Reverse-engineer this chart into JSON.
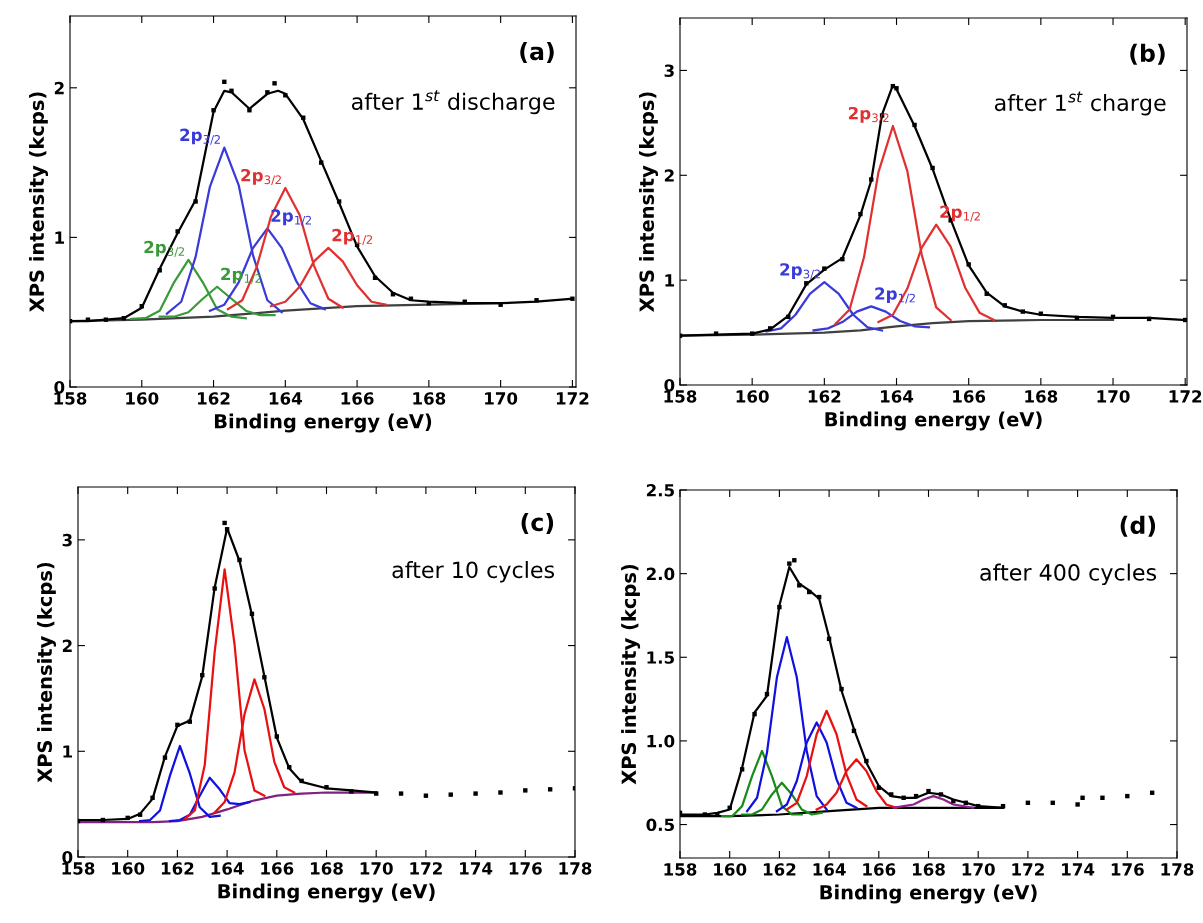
{
  "chart_data": [
    {
      "type": "line",
      "xlabel": "Binding energy (eV)",
      "ylabel": "XPS intensity (kcps)",
      "xlim": [
        158,
        172.1
      ],
      "ylim": [
        0,
        2.48
      ],
      "xticks": [
        158,
        160,
        162,
        164,
        166,
        168,
        170,
        172
      ],
      "yticks": [
        0,
        1,
        2
      ],
      "grid": false,
      "annotations": [
        "(a)",
        "after 1$^{st}$ discharge"
      ],
      "series": [
        {
          "color": "#404040",
          "x": [
            158,
            160,
            162,
            164,
            166,
            168,
            170
          ],
          "values": [
            0.44,
            0.45,
            0.47,
            0.51,
            0.54,
            0.55,
            0.56
          ]
        },
        {
          "name": "2p$_{3/2}$",
          "color": "#3a9a3a",
          "x": [
            159.7,
            160.1,
            160.5,
            160.9,
            161.3,
            161.7,
            162.1,
            162.5,
            162.9
          ],
          "values": [
            0.455,
            0.46,
            0.51,
            0.7,
            0.85,
            0.7,
            0.52,
            0.47,
            0.46
          ]
        },
        {
          "name": "2p$_{1/2}$",
          "color": "#3a9a3a",
          "x": [
            160.5,
            160.9,
            161.3,
            161.7,
            162.1,
            162.5,
            162.9,
            163.3,
            163.7
          ],
          "values": [
            0.47,
            0.47,
            0.5,
            0.59,
            0.67,
            0.59,
            0.51,
            0.48,
            0.48
          ]
        },
        {
          "name": "2p$_{3/2}$",
          "color": "#3a3ad8",
          "x": [
            160.7,
            161.1,
            161.5,
            161.9,
            162.3,
            162.7,
            163.1,
            163.5,
            163.9
          ],
          "values": [
            0.49,
            0.57,
            0.87,
            1.34,
            1.6,
            1.35,
            0.88,
            0.58,
            0.5
          ]
        },
        {
          "name": "2p$_{1/2}$",
          "color": "#3a3ad8",
          "x": [
            161.9,
            162.3,
            162.7,
            163.1,
            163.5,
            163.9,
            164.3,
            164.7,
            165.1
          ],
          "values": [
            0.51,
            0.55,
            0.7,
            0.93,
            1.06,
            0.93,
            0.71,
            0.56,
            0.52
          ]
        },
        {
          "name": "2p$_{3/2}$",
          "color": "#e03030",
          "x": [
            162.4,
            162.8,
            163.2,
            163.6,
            164.0,
            164.4,
            164.8,
            165.2,
            165.6
          ],
          "values": [
            0.52,
            0.58,
            0.8,
            1.14,
            1.33,
            1.15,
            0.81,
            0.59,
            0.53
          ]
        },
        {
          "name": "2p$_{1/2}$",
          "color": "#e03030",
          "x": [
            163.6,
            164.0,
            164.4,
            164.8,
            165.2,
            165.6,
            166.0,
            166.4,
            166.8
          ],
          "values": [
            0.54,
            0.57,
            0.67,
            0.84,
            0.93,
            0.84,
            0.68,
            0.57,
            0.55
          ]
        },
        {
          "color": "#000000",
          "x": [
            158,
            158.5,
            159,
            159.5,
            160,
            160.5,
            161,
            161.5,
            162,
            162.3,
            162.5,
            163,
            163.5,
            163.8,
            164,
            164.5,
            165,
            165.5,
            166,
            166.5,
            167,
            167.5,
            168,
            169,
            170,
            171,
            172
          ],
          "values": [
            0.44,
            0.44,
            0.45,
            0.46,
            0.53,
            0.79,
            1.03,
            1.25,
            1.84,
            1.98,
            1.97,
            1.86,
            1.96,
            1.98,
            1.96,
            1.79,
            1.51,
            1.23,
            0.94,
            0.74,
            0.63,
            0.58,
            0.57,
            0.56,
            0.56,
            0.57,
            0.59
          ]
        },
        {
          "type": "scatter",
          "marker": "square",
          "color": "#000000",
          "x": [
            158,
            158.5,
            159,
            159.5,
            160,
            160.5,
            161,
            161.5,
            162,
            162.3,
            162.5,
            163,
            163.5,
            163.7,
            164,
            164.5,
            165,
            165.5,
            166,
            166.5,
            167,
            167.5,
            168,
            169,
            170,
            171,
            172
          ],
          "values": [
            0.44,
            0.45,
            0.45,
            0.46,
            0.54,
            0.78,
            1.04,
            1.24,
            1.85,
            2.04,
            1.98,
            1.85,
            1.97,
            2.03,
            1.95,
            1.8,
            1.5,
            1.24,
            0.95,
            0.73,
            0.62,
            0.59,
            0.56,
            0.57,
            0.55,
            0.58,
            0.59
          ]
        }
      ]
    },
    {
      "type": "line",
      "xlabel": "Binding energy (eV)",
      "ylabel": "XPS intensity (kcps)",
      "xlim": [
        158,
        172.05
      ],
      "ylim": [
        0,
        3.5
      ],
      "xticks": [
        158,
        160,
        162,
        164,
        166,
        168,
        170,
        172
      ],
      "yticks": [
        0,
        1,
        2,
        3
      ],
      "grid": false,
      "annotations": [
        "(b)",
        "after 1$^{st}$ charge"
      ],
      "series": [
        {
          "color": "#404040",
          "x": [
            158,
            160,
            162,
            163,
            164,
            165,
            166,
            168,
            170
          ],
          "values": [
            0.47,
            0.48,
            0.5,
            0.52,
            0.56,
            0.59,
            0.61,
            0.62,
            0.62
          ]
        },
        {
          "name": "2p$_{3/2}$",
          "color": "#3a3ad8",
          "x": [
            160.4,
            160.8,
            161.2,
            161.6,
            162.0,
            162.4,
            162.8,
            163.2,
            163.6
          ],
          "values": [
            0.51,
            0.54,
            0.67,
            0.87,
            0.98,
            0.87,
            0.67,
            0.55,
            0.52
          ]
        },
        {
          "name": "2p$_{1/2}$",
          "color": "#3a3ad8",
          "x": [
            161.7,
            162.1,
            162.5,
            162.9,
            163.3,
            163.7,
            164.1,
            164.5,
            164.9
          ],
          "values": [
            0.52,
            0.54,
            0.6,
            0.7,
            0.75,
            0.7,
            0.61,
            0.56,
            0.55
          ]
        },
        {
          "name": "2p$_{3/2}$",
          "color": "#e03030",
          "x": [
            162.3,
            162.7,
            163.1,
            163.5,
            163.9,
            164.3,
            164.7,
            165.1,
            165.5
          ],
          "values": [
            0.58,
            0.72,
            1.22,
            2.03,
            2.47,
            2.04,
            1.24,
            0.74,
            0.62
          ]
        },
        {
          "name": "2p$_{1/2}$",
          "color": "#e03030",
          "x": [
            163.5,
            163.9,
            164.3,
            164.7,
            165.1,
            165.5,
            165.9,
            166.3,
            166.7
          ],
          "values": [
            0.6,
            0.67,
            0.92,
            1.31,
            1.53,
            1.32,
            0.93,
            0.69,
            0.62
          ]
        },
        {
          "color": "#000000",
          "x": [
            158,
            159,
            160,
            160.5,
            161,
            161.5,
            162,
            162.5,
            163,
            163.3,
            163.6,
            163.9,
            164,
            164.5,
            165,
            165.5,
            166,
            166.5,
            167,
            167.5,
            168,
            169,
            170,
            171,
            172
          ],
          "values": [
            0.47,
            0.48,
            0.49,
            0.53,
            0.66,
            0.96,
            1.1,
            1.21,
            1.62,
            1.95,
            2.58,
            2.86,
            2.82,
            2.47,
            2.06,
            1.58,
            1.14,
            0.88,
            0.75,
            0.7,
            0.67,
            0.65,
            0.64,
            0.64,
            0.62
          ]
        },
        {
          "type": "scatter",
          "marker": "square",
          "color": "#000000",
          "x": [
            158,
            159,
            160,
            160.5,
            161,
            161.5,
            162,
            162.5,
            163,
            163.3,
            163.6,
            163.9,
            164,
            164.5,
            165,
            165.5,
            166,
            166.5,
            167,
            167.5,
            168,
            169,
            170,
            171,
            172
          ],
          "values": [
            0.47,
            0.49,
            0.49,
            0.54,
            0.65,
            0.97,
            1.11,
            1.2,
            1.63,
            1.96,
            2.57,
            2.85,
            2.83,
            2.48,
            2.07,
            1.57,
            1.15,
            0.87,
            0.76,
            0.7,
            0.68,
            0.64,
            0.65,
            0.63,
            0.62
          ]
        }
      ]
    },
    {
      "type": "line",
      "xlabel": "Binding energy (eV)",
      "ylabel": "XPS intensity (kcps)",
      "xlim": [
        158,
        178
      ],
      "ylim": [
        0,
        3.5
      ],
      "xticks": [
        158,
        160,
        162,
        164,
        166,
        168,
        170,
        172,
        174,
        176,
        178
      ],
      "yticks": [
        0,
        1,
        2,
        3
      ],
      "grid": false,
      "annotations": [
        "(c)",
        "after 10 cycles"
      ],
      "series": [
        {
          "color": "#802080",
          "x": [
            158,
            161,
            162,
            163,
            164,
            165,
            166,
            167,
            168,
            170
          ],
          "values": [
            0.33,
            0.33,
            0.34,
            0.38,
            0.45,
            0.53,
            0.58,
            0.6,
            0.61,
            0.61
          ]
        },
        {
          "color": "#1010e0",
          "x": [
            160.5,
            160.9,
            161.3,
            161.7,
            162.1,
            162.5,
            162.9,
            163.3,
            163.7
          ],
          "values": [
            0.34,
            0.35,
            0.44,
            0.77,
            1.05,
            0.79,
            0.47,
            0.38,
            0.39
          ]
        },
        {
          "color": "#1010e0",
          "x": [
            161.7,
            162.1,
            162.5,
            162.9,
            163.3,
            163.7,
            164.1,
            164.5,
            164.9
          ],
          "values": [
            0.34,
            0.35,
            0.4,
            0.58,
            0.75,
            0.64,
            0.51,
            0.5,
            0.52
          ]
        },
        {
          "color": "#e81010",
          "x": [
            162.3,
            162.7,
            163.1,
            163.5,
            163.9,
            164.3,
            164.7,
            165.1,
            165.5
          ],
          "values": [
            0.36,
            0.44,
            0.87,
            1.94,
            2.72,
            2.01,
            1.01,
            0.63,
            0.58
          ]
        },
        {
          "color": "#e81010",
          "x": [
            163.5,
            163.9,
            164.3,
            164.7,
            165.1,
            165.5,
            165.9,
            166.3,
            166.7
          ],
          "values": [
            0.42,
            0.52,
            0.8,
            1.35,
            1.68,
            1.4,
            0.9,
            0.66,
            0.61
          ]
        },
        {
          "color": "#000000",
          "x": [
            158,
            159,
            160,
            160.5,
            161,
            161.5,
            162,
            162.5,
            163,
            163.5,
            164,
            164.5,
            165,
            165.5,
            166,
            166.5,
            167,
            168,
            169,
            170
          ],
          "values": [
            0.35,
            0.35,
            0.36,
            0.41,
            0.55,
            0.95,
            1.24,
            1.29,
            1.71,
            2.55,
            3.11,
            2.8,
            2.29,
            1.71,
            1.13,
            0.84,
            0.71,
            0.65,
            0.63,
            0.61
          ]
        },
        {
          "type": "scatter",
          "marker": "square",
          "color": "#000000",
          "x": [
            158,
            159,
            160,
            160.5,
            161,
            161.5,
            162,
            162.5,
            163,
            163.5,
            163.9,
            164,
            164.5,
            165,
            165.5,
            166,
            166.5,
            167,
            168,
            169,
            170,
            171,
            172,
            173,
            174,
            175,
            176,
            177,
            178
          ],
          "values": [
            0.34,
            0.35,
            0.37,
            0.4,
            0.56,
            0.94,
            1.25,
            1.28,
            1.72,
            2.54,
            3.16,
            3.1,
            2.81,
            2.3,
            1.7,
            1.14,
            0.85,
            0.72,
            0.66,
            0.62,
            0.6,
            0.6,
            0.58,
            0.59,
            0.6,
            0.61,
            0.63,
            0.64,
            0.65
          ]
        }
      ]
    },
    {
      "type": "line",
      "xlabel": "Binding energy (eV)",
      "ylabel": "XPS intensity (kcps)",
      "xlim": [
        158,
        178
      ],
      "ylim": [
        0.3,
        2.5
      ],
      "xticks": [
        158,
        160,
        162,
        164,
        166,
        168,
        170,
        172,
        174,
        176,
        178
      ],
      "yticks": [
        {
          "value": 0.5,
          "label": "0.5"
        },
        {
          "value": 1,
          "label": "1.0"
        },
        {
          "value": 1.5,
          "label": "1.5"
        },
        {
          "value": 2,
          "label": "2.0"
        },
        {
          "value": 2.5,
          "label": "2.5"
        }
      ],
      "grid": false,
      "annotations": [
        "(d)",
        "after 400 cycles"
      ],
      "series": [
        {
          "color": "#000000",
          "x": [
            158,
            160,
            162,
            164,
            166,
            168,
            170,
            171
          ],
          "values": [
            0.55,
            0.55,
            0.56,
            0.58,
            0.6,
            0.6,
            0.6,
            0.6
          ]
        },
        {
          "color": "#1a8a1a",
          "x": [
            159.7,
            160.1,
            160.5,
            160.9,
            161.3,
            161.7,
            162.1,
            162.5,
            162.9
          ],
          "values": [
            0.55,
            0.55,
            0.61,
            0.79,
            0.94,
            0.79,
            0.61,
            0.56,
            0.56
          ]
        },
        {
          "color": "#1a8a1a",
          "x": [
            160.5,
            160.9,
            161.3,
            161.7,
            162.1,
            162.5,
            162.9,
            163.3,
            163.7
          ],
          "values": [
            0.56,
            0.56,
            0.59,
            0.68,
            0.75,
            0.68,
            0.59,
            0.56,
            0.57
          ]
        },
        {
          "color": "#1010e0",
          "x": [
            160.7,
            161.1,
            161.5,
            161.9,
            162.3,
            162.7,
            163.1,
            163.5,
            163.9
          ],
          "values": [
            0.58,
            0.66,
            0.93,
            1.38,
            1.62,
            1.38,
            0.94,
            0.67,
            0.59
          ]
        },
        {
          "color": "#1010e0",
          "x": [
            161.9,
            162.3,
            162.7,
            163.1,
            163.5,
            163.9,
            164.3,
            164.7,
            165.1
          ],
          "values": [
            0.58,
            0.62,
            0.76,
            0.99,
            1.11,
            0.99,
            0.77,
            0.63,
            0.6
          ]
        },
        {
          "color": "#e81010",
          "x": [
            162.3,
            162.7,
            163.1,
            163.5,
            163.9,
            164.3,
            164.7,
            165.1,
            165.5
          ],
          "values": [
            0.59,
            0.63,
            0.79,
            1.04,
            1.18,
            1.04,
            0.8,
            0.65,
            0.61
          ]
        },
        {
          "color": "#e81010",
          "x": [
            163.5,
            163.9,
            164.3,
            164.7,
            165.1,
            165.5,
            165.9,
            166.3,
            166.7
          ],
          "values": [
            0.59,
            0.62,
            0.69,
            0.82,
            0.89,
            0.82,
            0.7,
            0.62,
            0.6
          ]
        },
        {
          "color": "#902090",
          "x": [
            166.6,
            167.0,
            167.4,
            167.8,
            168.2,
            168.6,
            169.0,
            169.4,
            169.8
          ],
          "values": [
            0.6,
            0.61,
            0.62,
            0.65,
            0.67,
            0.65,
            0.62,
            0.61,
            0.6
          ]
        },
        {
          "color": "#000000",
          "x": [
            158,
            159,
            159.5,
            160,
            160.5,
            161,
            161.5,
            162,
            162.4,
            162.8,
            163.2,
            163.6,
            164,
            164.5,
            165,
            165.5,
            166,
            166.5,
            167,
            167.5,
            168,
            168.5,
            169,
            169.5,
            170,
            171
          ],
          "values": [
            0.56,
            0.56,
            0.57,
            0.59,
            0.84,
            1.17,
            1.27,
            1.81,
            2.04,
            1.94,
            1.9,
            1.85,
            1.62,
            1.3,
            1.07,
            0.87,
            0.73,
            0.67,
            0.66,
            0.66,
            0.69,
            0.68,
            0.65,
            0.63,
            0.61,
            0.6
          ]
        },
        {
          "type": "scatter",
          "marker": "square",
          "color": "#000000",
          "x": [
            158,
            159,
            159.5,
            160,
            160.5,
            161,
            161.5,
            162,
            162.4,
            162.6,
            162.8,
            163.2,
            163.6,
            164,
            164.5,
            165,
            165.5,
            166,
            166.5,
            167,
            167.5,
            168,
            168.5,
            169,
            169.5,
            170,
            171,
            172,
            173,
            174,
            174.2,
            175,
            176,
            177
          ],
          "values": [
            0.57,
            0.56,
            0.56,
            0.6,
            0.83,
            1.16,
            1.28,
            1.8,
            2.06,
            2.08,
            1.93,
            1.89,
            1.86,
            1.61,
            1.31,
            1.06,
            0.88,
            0.72,
            0.68,
            0.66,
            0.67,
            0.7,
            0.68,
            0.64,
            0.63,
            0.61,
            0.61,
            0.63,
            0.63,
            0.62,
            0.66,
            0.66,
            0.67,
            0.69
          ]
        }
      ]
    }
  ]
}
